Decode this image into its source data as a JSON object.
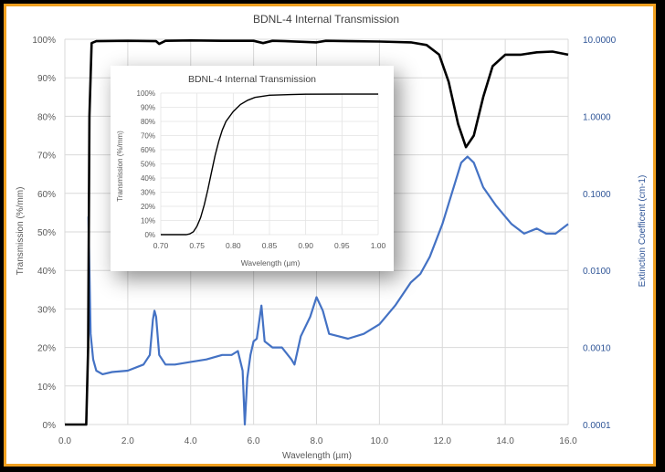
{
  "chart_data": [
    {
      "type": "line",
      "title": "BDNL-4 Internal Transmission",
      "xlabel": "Wavelength (µm)",
      "ylabel": "Transmission (%/mm)",
      "y2label": "Extinction Coefficent (cm-1)",
      "xlim": [
        0,
        16
      ],
      "ylim": [
        0,
        100
      ],
      "y2lim_log": [
        0.0001,
        10
      ],
      "x_ticks": [
        "0.0",
        "2.0",
        "4.0",
        "6.0",
        "8.0",
        "10.0",
        "12.0",
        "14.0",
        "16.0"
      ],
      "y_ticks": [
        "0%",
        "10%",
        "20%",
        "30%",
        "40%",
        "50%",
        "60%",
        "70%",
        "80%",
        "90%",
        "100%"
      ],
      "y2_ticks": [
        "0.0001",
        "0.0010",
        "0.0100",
        "0.1000",
        "1.0000",
        "10.0000"
      ],
      "grid": true,
      "colors": {
        "transmission": "#000000",
        "extinction": "#4472c4",
        "y2axis": "#2f5597"
      },
      "series": [
        {
          "axis": "left",
          "x": [
            0,
            0.68,
            0.74,
            0.78,
            0.85,
            1.0,
            2.0,
            2.9,
            3.0,
            3.2,
            4.0,
            5.0,
            6.0,
            6.3,
            6.6,
            7.0,
            8.0,
            8.3,
            9.0,
            10.0,
            11.0,
            11.5,
            11.9,
            12.2,
            12.5,
            12.75,
            13.0,
            13.3,
            13.6,
            14.0,
            14.5,
            15.0,
            15.5,
            16.0
          ],
          "y": [
            0,
            0,
            20,
            80,
            99,
            99.5,
            99.6,
            99.5,
            98.8,
            99.6,
            99.7,
            99.6,
            99.6,
            99,
            99.6,
            99.5,
            99.2,
            99.6,
            99.5,
            99.4,
            99.2,
            98.5,
            96,
            89,
            78,
            72,
            75,
            85,
            93,
            96,
            96,
            96.6,
            96.8,
            96
          ]
        },
        {
          "axis": "right",
          "x": [
            0.75,
            0.78,
            0.82,
            0.9,
            1.0,
            1.2,
            1.5,
            2.0,
            2.5,
            2.7,
            2.8,
            2.85,
            2.9,
            3.0,
            3.2,
            3.5,
            4.0,
            4.5,
            5.0,
            5.3,
            5.5,
            5.65,
            5.72,
            5.8,
            5.9,
            6.0,
            6.1,
            6.25,
            6.35,
            6.6,
            6.9,
            7.2,
            7.3,
            7.5,
            7.8,
            8.0,
            8.2,
            8.4,
            8.7,
            9.0,
            9.5,
            10.0,
            10.5,
            11.0,
            11.3,
            11.6,
            12.0,
            12.3,
            12.6,
            12.8,
            13.0,
            13.3,
            13.7,
            14.2,
            14.6,
            15.0,
            15.3,
            15.6,
            16.0
          ],
          "y": [
            0.05,
            0.01,
            0.0015,
            0.0007,
            0.0005,
            0.00045,
            0.00048,
            0.0005,
            0.0006,
            0.0008,
            0.0023,
            0.003,
            0.0025,
            0.0008,
            0.0006,
            0.0006,
            0.00065,
            0.0007,
            0.0008,
            0.0008,
            0.0009,
            0.0005,
            0.0001,
            0.0004,
            0.0008,
            0.0012,
            0.0013,
            0.0035,
            0.0012,
            0.001,
            0.001,
            0.0007,
            0.0006,
            0.0014,
            0.0025,
            0.0045,
            0.003,
            0.0015,
            0.0014,
            0.0013,
            0.0015,
            0.002,
            0.0035,
            0.007,
            0.009,
            0.015,
            0.04,
            0.1,
            0.25,
            0.3,
            0.25,
            0.12,
            0.07,
            0.04,
            0.03,
            0.035,
            0.03,
            0.03,
            0.04
          ]
        }
      ]
    },
    {
      "type": "line",
      "title": "BDNL-4 Internal Transmission",
      "xlabel": "Wavelength (µm)",
      "ylabel": "Transmission (%/mm)",
      "xlim": [
        0.7,
        1.0
      ],
      "ylim": [
        0,
        100
      ],
      "x_ticks": [
        "0.70",
        "0.75",
        "0.80",
        "0.85",
        "0.90",
        "0.95",
        "1.00"
      ],
      "y_ticks": [
        "0%",
        "10%",
        "20%",
        "30%",
        "40%",
        "50%",
        "60%",
        "70%",
        "80%",
        "90%",
        "100%"
      ],
      "grid": true,
      "series": [
        {
          "x": [
            0.7,
            0.72,
            0.735,
            0.74,
            0.745,
            0.75,
            0.755,
            0.76,
            0.765,
            0.77,
            0.775,
            0.78,
            0.785,
            0.79,
            0.8,
            0.81,
            0.82,
            0.83,
            0.85,
            0.88,
            0.9,
            0.95,
            1.0
          ],
          "y": [
            0,
            0,
            0,
            0.5,
            2,
            6,
            12,
            21,
            32,
            44,
            56,
            66,
            74,
            80,
            87,
            92,
            95,
            97,
            98.5,
            99,
            99.2,
            99.3,
            99.3
          ]
        }
      ]
    }
  ]
}
